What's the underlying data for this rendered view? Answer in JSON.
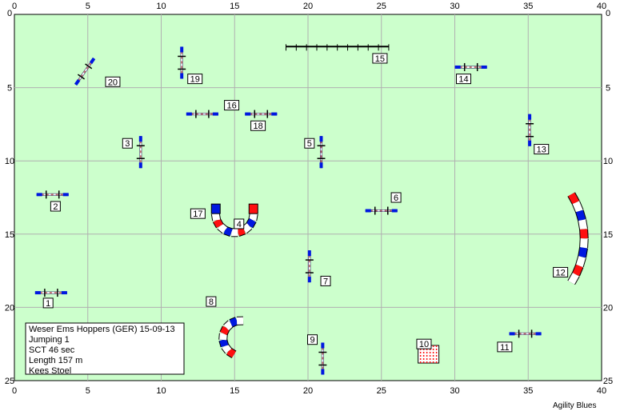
{
  "axis": {
    "x_ticks": [
      "0",
      "5",
      "10",
      "15",
      "20",
      "25",
      "30",
      "35",
      "40"
    ],
    "y_ticks": [
      "0",
      "5",
      "10",
      "15",
      "20",
      "25"
    ]
  },
  "colors": {
    "field": "#ccffcc",
    "grid": "#b0b0b0",
    "blue": "#0018e0",
    "red": "#ff1010",
    "pole": "#c07070",
    "post": "#101060"
  },
  "obstacles": [
    {
      "label": "1",
      "type": "jump",
      "x": 2.5,
      "y": 19.0,
      "angle": 0
    },
    {
      "label": "2",
      "type": "jump",
      "x": 2.6,
      "y": 12.3,
      "angle": 0
    },
    {
      "label": "3",
      "type": "jump",
      "x": 8.6,
      "y": 9.4,
      "angle": 90
    },
    {
      "label": "4",
      "type": "tunnel-u",
      "x": 15.0,
      "y": 13.9
    },
    {
      "label": "5",
      "type": "jump",
      "x": 20.9,
      "y": 9.4,
      "angle": 90
    },
    {
      "label": "6",
      "type": "jump",
      "x": 25.0,
      "y": 13.4,
      "angle": 0
    },
    {
      "label": "7",
      "type": "jump",
      "x": 20.1,
      "y": 17.2,
      "angle": 90
    },
    {
      "label": "8",
      "type": "tunnel-c",
      "x": 14.2,
      "y": 22.5
    },
    {
      "label": "9",
      "type": "jump",
      "x": 21.0,
      "y": 23.5,
      "angle": 90
    },
    {
      "label": "10",
      "type": "weave",
      "x": 28.2,
      "y": 23.2
    },
    {
      "label": "11",
      "type": "jump",
      "x": 34.8,
      "y": 21.8,
      "angle": 0
    },
    {
      "label": "12",
      "type": "tunnel-arc",
      "x": 36.5,
      "y": 15.3
    },
    {
      "label": "13",
      "type": "jump",
      "x": 35.1,
      "y": 7.9,
      "angle": 90
    },
    {
      "label": "14",
      "type": "jump",
      "x": 31.1,
      "y": 3.6,
      "angle": 0
    },
    {
      "label": "15",
      "type": "walk",
      "x": 22.0,
      "y": 2.2,
      "angle": 0
    },
    {
      "label": "16",
      "type": "jump",
      "x": 12.8,
      "y": 6.8,
      "angle": 0
    },
    {
      "label": "17",
      "type": "none",
      "x": 0,
      "y": 0
    },
    {
      "label": "18",
      "type": "jump",
      "x": 16.8,
      "y": 6.8,
      "angle": 0
    },
    {
      "label": "19",
      "type": "jump",
      "x": 11.4,
      "y": 3.3,
      "angle": 90
    },
    {
      "label": "20",
      "type": "jump",
      "x": 4.8,
      "y": 3.9,
      "angle": -55
    }
  ],
  "labels": [
    {
      "text": "1",
      "x": 2.3,
      "y": 19.7
    },
    {
      "text": "2",
      "x": 2.8,
      "y": 13.1
    },
    {
      "text": "3",
      "x": 7.7,
      "y": 8.8
    },
    {
      "text": "4",
      "x": 15.3,
      "y": 14.3
    },
    {
      "text": "5",
      "x": 20.1,
      "y": 8.8
    },
    {
      "text": "6",
      "x": 26.0,
      "y": 12.5
    },
    {
      "text": "7",
      "x": 21.2,
      "y": 18.2
    },
    {
      "text": "8",
      "x": 13.4,
      "y": 19.6
    },
    {
      "text": "9",
      "x": 20.3,
      "y": 22.2
    },
    {
      "text": "10",
      "x": 27.9,
      "y": 22.5
    },
    {
      "text": "11",
      "x": 33.4,
      "y": 22.7
    },
    {
      "text": "12",
      "x": 37.2,
      "y": 17.6
    },
    {
      "text": "13",
      "x": 35.9,
      "y": 9.2
    },
    {
      "text": "14",
      "x": 30.6,
      "y": 4.4
    },
    {
      "text": "15",
      "x": 24.9,
      "y": 3.0
    },
    {
      "text": "16",
      "x": 14.8,
      "y": 6.2
    },
    {
      "text": "17",
      "x": 12.5,
      "y": 13.6
    },
    {
      "text": "18",
      "x": 16.6,
      "y": 7.6
    },
    {
      "text": "19",
      "x": 12.3,
      "y": 4.4
    },
    {
      "text": "20",
      "x": 6.7,
      "y": 4.6
    }
  ],
  "info": {
    "line1": "Weser Ems Hoppers (GER) 15-09-13",
    "line2": "Jumping 1",
    "line3": "SCT 46 sec",
    "line4": "Length 157 m",
    "line5": "Kees Stoel"
  },
  "credit": "Agility Blues"
}
